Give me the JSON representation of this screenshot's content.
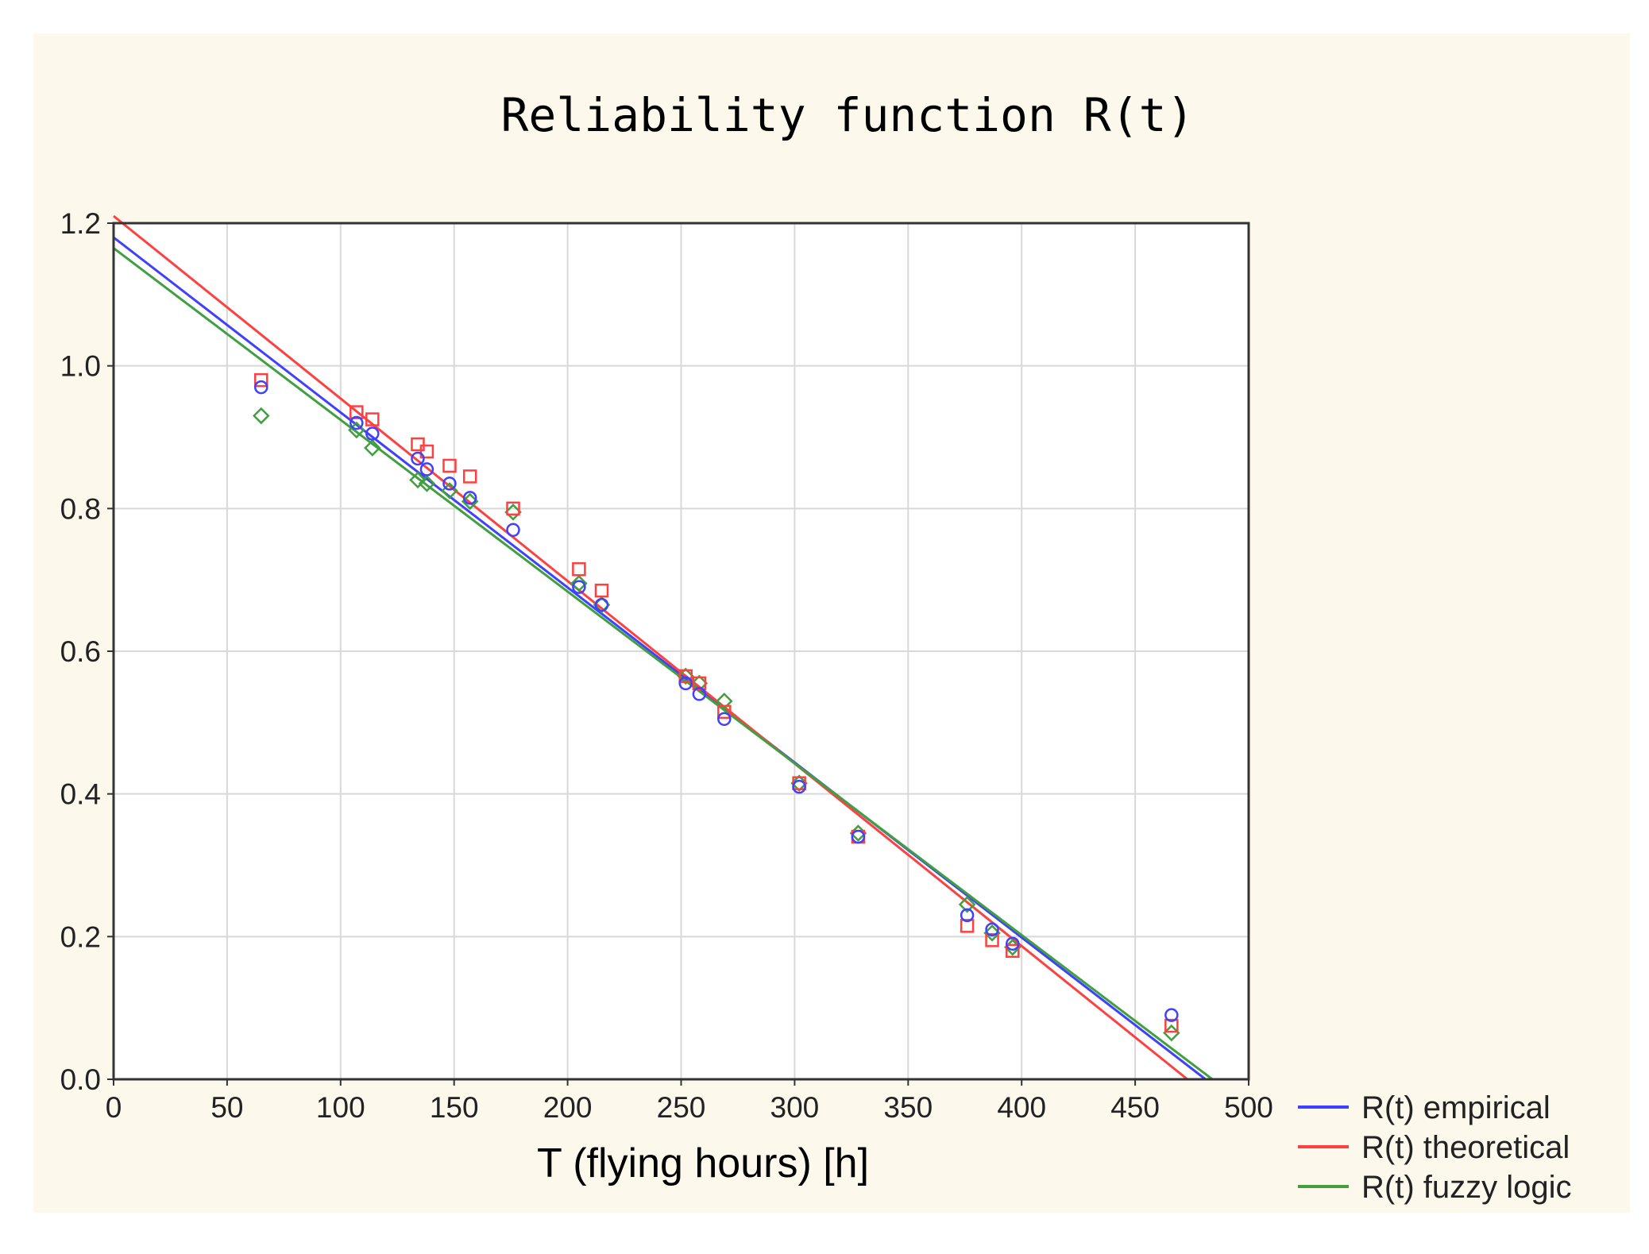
{
  "chart_data": {
    "type": "scatter",
    "title": "Reliability function R(t)",
    "xlabel": "T (flying hours) [h]",
    "ylabel": "",
    "xlim": [
      0,
      500
    ],
    "ylim": [
      0,
      1.2
    ],
    "x_ticks": [
      0,
      50,
      100,
      150,
      200,
      250,
      300,
      350,
      400,
      450,
      500
    ],
    "y_ticks": [
      0,
      0.2,
      0.4,
      0.6,
      0.8,
      1.0,
      1.2
    ],
    "x_tick_labels": [
      "0",
      "50",
      "100",
      "150",
      "200",
      "250",
      "300",
      "350",
      "400",
      "450",
      "500"
    ],
    "y_tick_labels": [
      "0.0",
      "0.2",
      "0.4",
      "0.6",
      "0.8",
      "1.0",
      "1.2"
    ],
    "grid": true,
    "legend_position": "bottom-right-outside",
    "series": [
      {
        "name": "R(t) empirical",
        "color": "#4040ff",
        "marker": "circle",
        "points": [
          [
            65,
            0.97
          ],
          [
            107,
            0.92
          ],
          [
            114,
            0.905
          ],
          [
            134,
            0.87
          ],
          [
            138,
            0.855
          ],
          [
            148,
            0.835
          ],
          [
            157,
            0.815
          ],
          [
            176,
            0.77
          ],
          [
            205,
            0.69
          ],
          [
            215,
            0.665
          ],
          [
            252,
            0.555
          ],
          [
            258,
            0.54
          ],
          [
            269,
            0.505
          ],
          [
            302,
            0.41
          ],
          [
            328,
            0.34
          ],
          [
            376,
            0.23
          ],
          [
            387,
            0.21
          ],
          [
            396,
            0.19
          ],
          [
            466,
            0.09
          ]
        ],
        "fit": [
          [
            0,
            1.18
          ],
          [
            481,
            0.0
          ]
        ]
      },
      {
        "name": "R(t) theoretical",
        "color": "#ff4040",
        "marker": "square",
        "points": [
          [
            65,
            0.98
          ],
          [
            107,
            0.935
          ],
          [
            114,
            0.925
          ],
          [
            134,
            0.89
          ],
          [
            138,
            0.88
          ],
          [
            148,
            0.86
          ],
          [
            157,
            0.845
          ],
          [
            176,
            0.8
          ],
          [
            205,
            0.715
          ],
          [
            215,
            0.685
          ],
          [
            252,
            0.565
          ],
          [
            258,
            0.555
          ],
          [
            269,
            0.515
          ],
          [
            302,
            0.415
          ],
          [
            328,
            0.34
          ],
          [
            376,
            0.215
          ],
          [
            387,
            0.195
          ],
          [
            396,
            0.18
          ],
          [
            466,
            0.075
          ]
        ],
        "fit": [
          [
            0,
            1.21
          ],
          [
            473,
            0.0
          ]
        ]
      },
      {
        "name": "R(t) fuzzy logic",
        "color": "#40a040",
        "marker": "diamond",
        "points": [
          [
            65,
            0.93
          ],
          [
            107,
            0.91
          ],
          [
            114,
            0.885
          ],
          [
            134,
            0.84
          ],
          [
            138,
            0.835
          ],
          [
            148,
            0.825
          ],
          [
            157,
            0.81
          ],
          [
            176,
            0.795
          ],
          [
            205,
            0.695
          ],
          [
            215,
            0.665
          ],
          [
            252,
            0.565
          ],
          [
            258,
            0.555
          ],
          [
            269,
            0.53
          ],
          [
            302,
            0.415
          ],
          [
            328,
            0.345
          ],
          [
            376,
            0.245
          ],
          [
            387,
            0.205
          ],
          [
            396,
            0.185
          ],
          [
            466,
            0.065
          ]
        ],
        "fit": [
          [
            0,
            1.165
          ],
          [
            484,
            0.0
          ]
        ]
      }
    ]
  }
}
